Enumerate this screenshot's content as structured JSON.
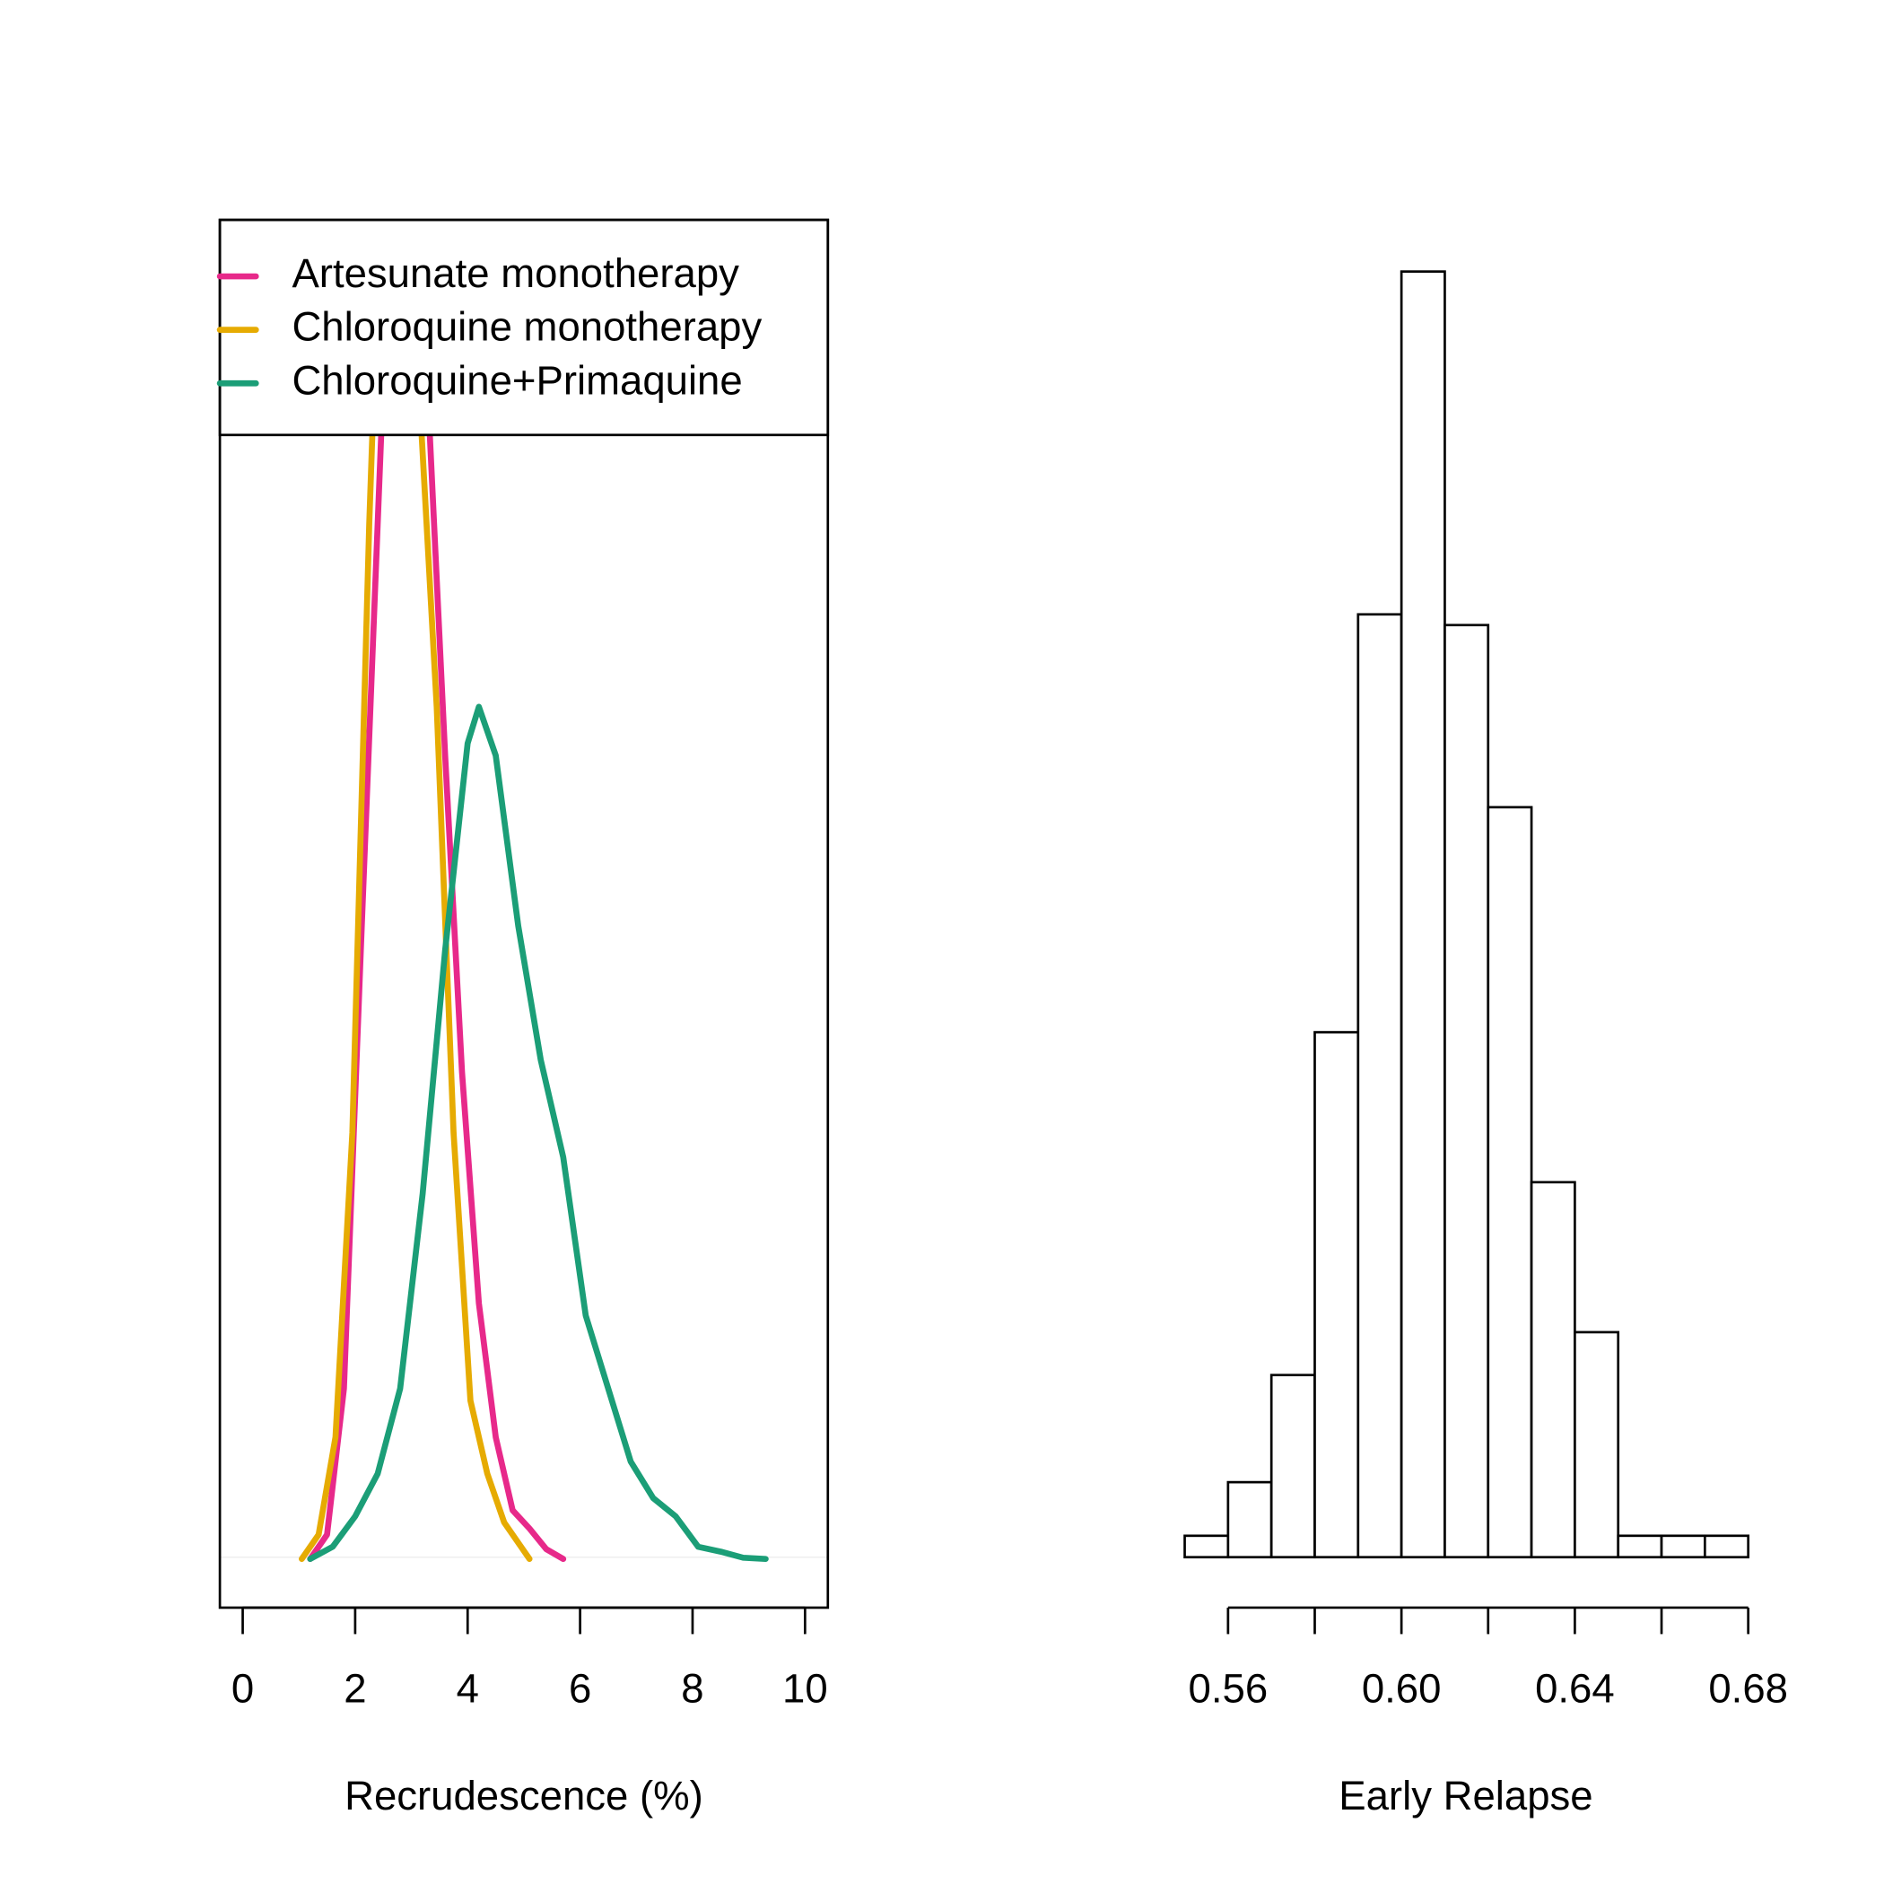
{
  "chart_data": [
    {
      "type": "line",
      "xlabel": "Recrudescence (%)",
      "xlim": [
        -0.406,
        10.406
      ],
      "xticks": [
        0,
        2,
        4,
        6,
        8,
        10
      ],
      "ylim": [
        -0.04,
        1.1
      ],
      "legend": "top-left",
      "series": [
        {
          "name": "Artesunate monotherapy",
          "color": "#E7298A",
          "x": [
            1.2,
            1.5,
            1.8,
            2.1,
            2.4,
            2.7,
            3.0,
            3.3,
            3.6,
            3.9,
            4.2,
            4.5,
            4.8,
            5.1,
            5.4,
            5.7
          ],
          "values": [
            0,
            0.02,
            0.14,
            0.5,
            0.85,
            1.2,
            1.2,
            0.95,
            0.66,
            0.4,
            0.21,
            0.1,
            0.04,
            0.025,
            0.008,
            0
          ]
        },
        {
          "name": "Chloroquine monotherapy",
          "color": "#E6AB02",
          "x": [
            1.05,
            1.35,
            1.65,
            1.95,
            2.25,
            2.55,
            2.85,
            3.15,
            3.45,
            3.75,
            4.05,
            4.35,
            4.65,
            4.95,
            5.1
          ],
          "values": [
            0,
            0.02,
            0.1,
            0.35,
            0.85,
            1.25,
            1.3,
            0.95,
            0.7,
            0.35,
            0.13,
            0.07,
            0.03,
            0.01,
            0
          ]
        },
        {
          "name": "Chloroquine+Primaquine",
          "color": "#1B9E77",
          "x": [
            1.2,
            1.6,
            2.0,
            2.4,
            2.8,
            3.2,
            3.6,
            4.0,
            4.2,
            4.5,
            4.9,
            5.3,
            5.7,
            6.1,
            6.5,
            6.9,
            7.3,
            7.7,
            8.1,
            8.5,
            8.9,
            9.3
          ],
          "values": [
            0,
            0.01,
            0.035,
            0.07,
            0.14,
            0.3,
            0.5,
            0.67,
            0.7,
            0.66,
            0.52,
            0.41,
            0.33,
            0.2,
            0.14,
            0.08,
            0.05,
            0.035,
            0.01,
            0.006,
            0.001,
            0
          ]
        }
      ]
    },
    {
      "type": "histogram",
      "xlabel": "Early Relapse",
      "bins": [
        0.55,
        0.56,
        0.57,
        0.58,
        0.59,
        0.6,
        0.61,
        0.62,
        0.63,
        0.64,
        0.65,
        0.66,
        0.67,
        0.68
      ],
      "counts": [
        2,
        7,
        17,
        49,
        88,
        120,
        87,
        70,
        35,
        21,
        2,
        2,
        2
      ],
      "xlim": [
        0.55,
        0.68
      ],
      "xticks": [
        0.56,
        {
          "value": 0.6,
          "label": "0.60"
        },
        0.64,
        0.68
      ],
      "minor_xticks": [
        0.58,
        0.62,
        0.66
      ],
      "ylim": [
        0,
        125
      ],
      "color": "#ffffff"
    }
  ]
}
